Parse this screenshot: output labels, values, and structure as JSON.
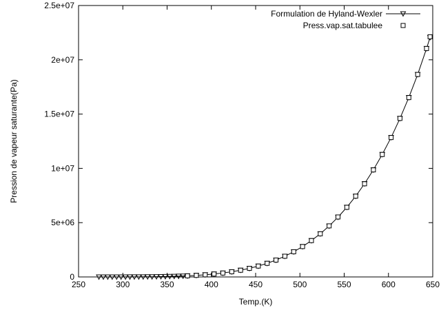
{
  "chart_data": {
    "type": "line",
    "xlabel": "Temp.(K)",
    "ylabel": "Pression de vapeur saturante(Pa)",
    "xlim": [
      250,
      650
    ],
    "ylim": [
      0,
      25000000
    ],
    "xticks": [
      250,
      300,
      350,
      400,
      450,
      500,
      550,
      600,
      650
    ],
    "xtick_labels": [
      "250",
      "300",
      "350",
      "400",
      "450",
      "500",
      "550",
      "600",
      "650"
    ],
    "yticks": [
      0,
      5000000,
      10000000,
      15000000,
      20000000,
      25000000
    ],
    "ytick_labels": [
      "0",
      "5e+06",
      "1e+07",
      "1.5e+07",
      "2e+07",
      "2.5e+07"
    ],
    "grid": false,
    "legend_position": "top-right",
    "series": [
      {
        "name": "Formulation de Hyland-Wexler",
        "style": "line with downward-triangle markers",
        "x": [
          273,
          278,
          283,
          288,
          293,
          298,
          303,
          308,
          313,
          318,
          323,
          328,
          333,
          338,
          343,
          348,
          353,
          358,
          363,
          368,
          373,
          383,
          393,
          403,
          413,
          423,
          433,
          443,
          453,
          463,
          473,
          483,
          493,
          503,
          513,
          523,
          533,
          543,
          553,
          563,
          573,
          583,
          593,
          603,
          613,
          623,
          633,
          643,
          647
        ],
        "y": [
          611,
          872,
          1228,
          1705,
          2339,
          3169,
          4246,
          5627,
          7381,
          9590,
          12344,
          15752,
          19932,
          25022,
          31176,
          38563,
          47373,
          57815,
          70117,
          84529,
          101325,
          143300,
          198500,
          270100,
          361500,
          476200,
          618200,
          792000,
          1002200,
          1254200,
          1553800,
          1906700,
          2319300,
          2798300,
          3350800,
          3973600,
          4692300,
          5505000,
          6416600,
          7436300,
          8587900,
          9865100,
          11284000,
          12845000,
          14600000,
          16530000,
          18650000,
          21040000,
          22060000
        ]
      },
      {
        "name": "Press.vap.sat.tabulee",
        "style": "hollow square markers",
        "x": [
          373,
          383,
          393,
          403,
          413,
          423,
          433,
          443,
          453,
          463,
          473,
          483,
          493,
          503,
          513,
          523,
          533,
          543,
          553,
          563,
          573,
          583,
          593,
          603,
          613,
          623,
          633,
          643,
          647
        ],
        "y": [
          101300,
          143000,
          198000,
          270000,
          361000,
          476000,
          618000,
          792000,
          1002000,
          1254000,
          1554000,
          1907000,
          2320000,
          2798000,
          3347000,
          3973000,
          4702000,
          5522000,
          6412000,
          7440000,
          8580000,
          9860000,
          11280000,
          12840000,
          14600000,
          16520000,
          18650000,
          21040000,
          22120000
        ]
      }
    ]
  }
}
